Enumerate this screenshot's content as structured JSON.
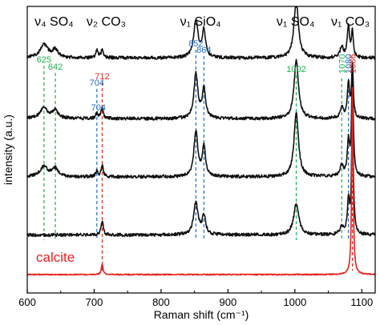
{
  "colors": {
    "green": "#1fb24a",
    "blue": "#1f6fd1",
    "red": "#e8211c",
    "trace": "#111111",
    "calcite": "#e8211c"
  },
  "chart_data": {
    "type": "line",
    "xlabel": "Raman shift (cm⁻¹)",
    "ylabel": "intensity (a.u.)",
    "xlim": [
      600,
      1120
    ],
    "x_ticks": [
      600,
      700,
      800,
      900,
      1000,
      1100
    ],
    "x_tick_labels": [
      "600",
      "700",
      "800",
      "900",
      "1000",
      "1100"
    ],
    "grid": false,
    "band_labels": [
      {
        "id": "v4so4",
        "text": "ν₄ SO₄",
        "x": 640
      },
      {
        "id": "v2co3",
        "text": "ν₂ CO₃",
        "x": 718
      },
      {
        "id": "v1sio4",
        "text": "ν₁ SiO₄",
        "x": 859
      },
      {
        "id": "v1so4",
        "text": "ν₁ SO₄",
        "x": 1001
      },
      {
        "id": "v1co3",
        "text": "ν₁ CO₃",
        "x": 1083
      }
    ],
    "peak_markers": [
      {
        "label": "625",
        "x": 625,
        "color": "green"
      },
      {
        "label": "642",
        "x": 642,
        "color": "green"
      },
      {
        "label": "704",
        "x": 704,
        "color": "blue"
      },
      {
        "label": "712",
        "x": 712,
        "color": "red"
      },
      {
        "label": "852",
        "x": 852,
        "color": "blue"
      },
      {
        "label": "864",
        "x": 864,
        "color": "blue"
      },
      {
        "label": "1002",
        "x": 1002,
        "color": "green"
      },
      {
        "label": "1070",
        "x": 1070,
        "color": "green"
      },
      {
        "label": "1080",
        "x": 1080,
        "color": "blue"
      },
      {
        "label": "1086",
        "x": 1086,
        "color": "red"
      }
    ],
    "extra_annotations": [
      {
        "label": "704",
        "x": 704,
        "color": "blue"
      }
    ],
    "series": [
      {
        "baseline": 0.82,
        "peaks": [
          [
            625,
            0.05,
            14
          ],
          [
            642,
            0.03,
            10
          ],
          [
            704,
            0.03,
            4
          ],
          [
            712,
            0.03,
            4
          ],
          [
            852,
            0.14,
            8
          ],
          [
            864,
            0.1,
            6
          ],
          [
            1002,
            0.22,
            8
          ],
          [
            1070,
            0.04,
            6
          ],
          [
            1080,
            0.12,
            4
          ],
          [
            1086,
            0.1,
            3
          ]
        ]
      },
      {
        "baseline": 0.59,
        "peaks": [
          [
            625,
            0.04,
            14
          ],
          [
            642,
            0.03,
            10
          ],
          [
            704,
            0.02,
            4
          ],
          [
            712,
            0.04,
            4
          ],
          [
            852,
            0.17,
            7
          ],
          [
            864,
            0.11,
            6
          ],
          [
            1002,
            0.22,
            8
          ],
          [
            1070,
            0.04,
            6
          ],
          [
            1080,
            0.13,
            4
          ],
          [
            1086,
            0.2,
            3
          ]
        ]
      },
      {
        "baseline": 0.37,
        "peaks": [
          [
            625,
            0.04,
            14
          ],
          [
            642,
            0.03,
            10
          ],
          [
            704,
            0.02,
            4
          ],
          [
            712,
            0.04,
            4
          ],
          [
            852,
            0.17,
            7
          ],
          [
            864,
            0.11,
            6
          ],
          [
            1002,
            0.24,
            8
          ],
          [
            1070,
            0.04,
            6
          ],
          [
            1080,
            0.13,
            4
          ],
          [
            1086,
            0.4,
            3
          ]
        ]
      },
      {
        "baseline": 0.15,
        "peaks": [
          [
            712,
            0.05,
            4
          ],
          [
            852,
            0.12,
            8
          ],
          [
            864,
            0.07,
            6
          ],
          [
            1002,
            0.12,
            9
          ],
          [
            1070,
            0.03,
            6
          ],
          [
            1080,
            0.12,
            4
          ],
          [
            1086,
            0.48,
            3
          ]
        ]
      },
      {
        "name": "calcite",
        "baseline": 0.0,
        "peaks": [
          [
            712,
            0.04,
            3
          ],
          [
            1086,
            0.71,
            2.5
          ]
        ]
      }
    ]
  }
}
